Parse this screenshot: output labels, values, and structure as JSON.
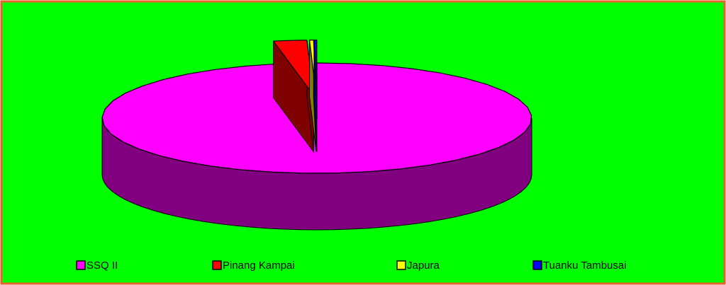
{
  "chart_data": {
    "type": "pie3d",
    "categories": [
      "SSQ II",
      "Pinang Kampai",
      "Japura",
      "Tuanku Tambusai"
    ],
    "values": [
      97,
      2.5,
      0.3,
      0.2
    ],
    "colors": [
      "#ff00ff",
      "#ff0000",
      "#ffff00",
      "#0000ff"
    ],
    "legend": "bottom"
  }
}
